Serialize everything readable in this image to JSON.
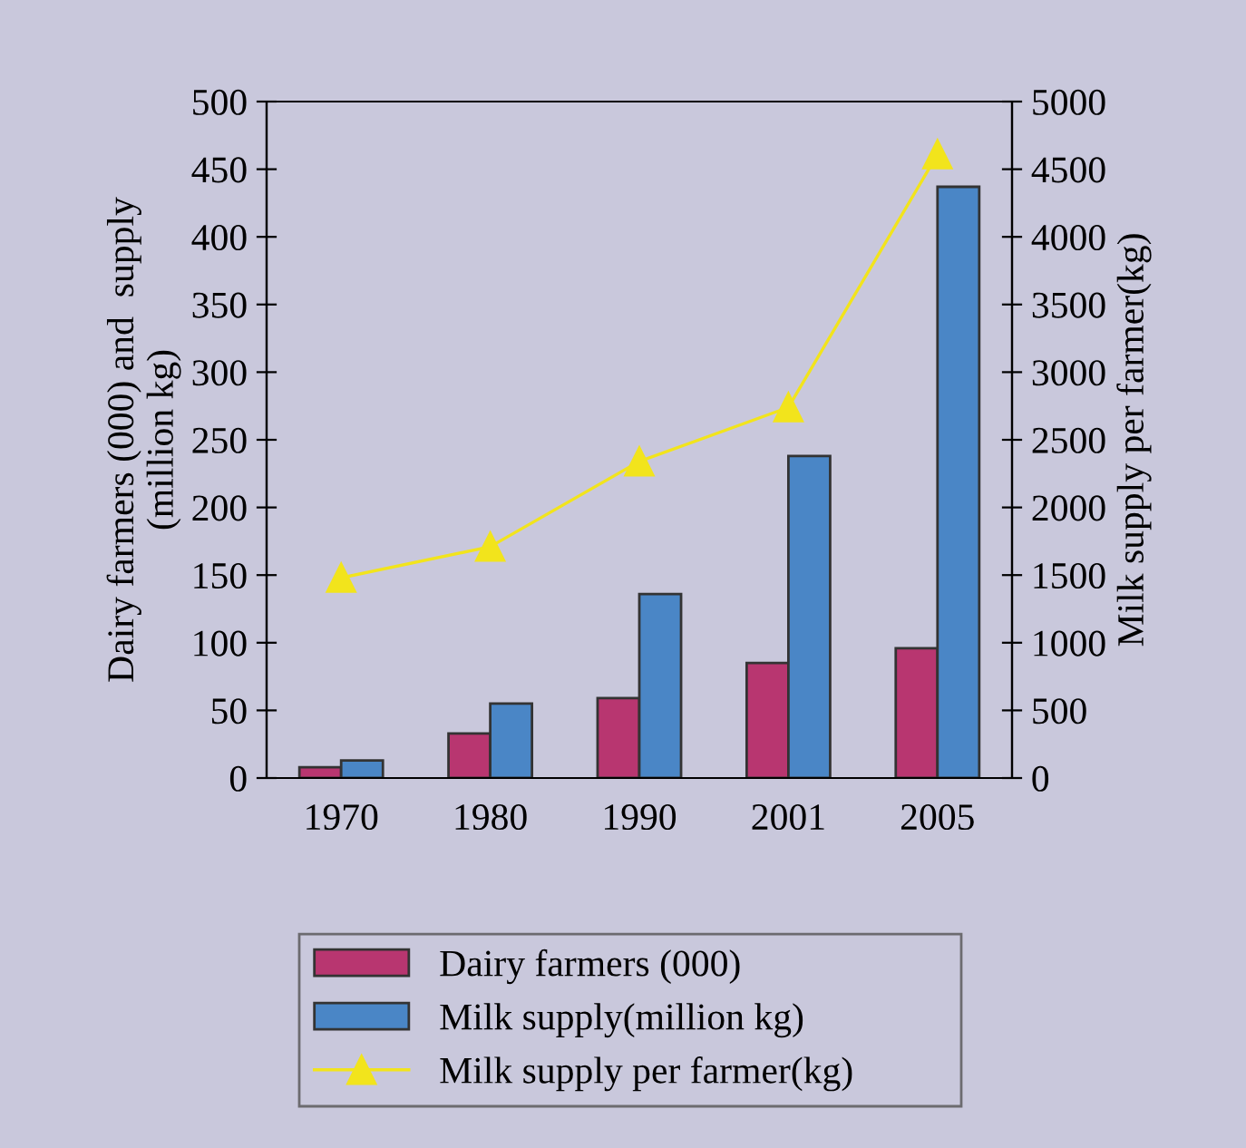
{
  "chart_data": {
    "type": "bar",
    "categories": [
      "1970",
      "1980",
      "1990",
      "2001",
      "2005"
    ],
    "ylabel": "Dairy farmers (000) and  supply\n(million kg)",
    "y2label": "Milk supply per farmer(kg)",
    "ylim": [
      0,
      500
    ],
    "yticks": [
      0,
      50,
      100,
      150,
      200,
      250,
      300,
      350,
      400,
      450,
      500
    ],
    "y2lim": [
      0,
      5000
    ],
    "y2ticks": [
      0,
      500,
      1000,
      1500,
      2000,
      2500,
      3000,
      3500,
      4000,
      4500,
      5000
    ],
    "legend": "bottom",
    "grid": false,
    "series": [
      {
        "name": "Dairy farmers (000)",
        "color": "#b83670",
        "values": [
          8,
          33,
          59,
          85,
          96
        ]
      },
      {
        "name": "Milk supply(million kg)",
        "color": "#4a86c6",
        "values": [
          13,
          55,
          136,
          238,
          437
        ]
      },
      {
        "name": "Milk supply per farmer(kg)",
        "type": "line",
        "axis": "y2",
        "marker": "triangle",
        "color": "#f2e41c",
        "values": [
          1480,
          1710,
          2340,
          2740,
          4610
        ]
      }
    ]
  }
}
